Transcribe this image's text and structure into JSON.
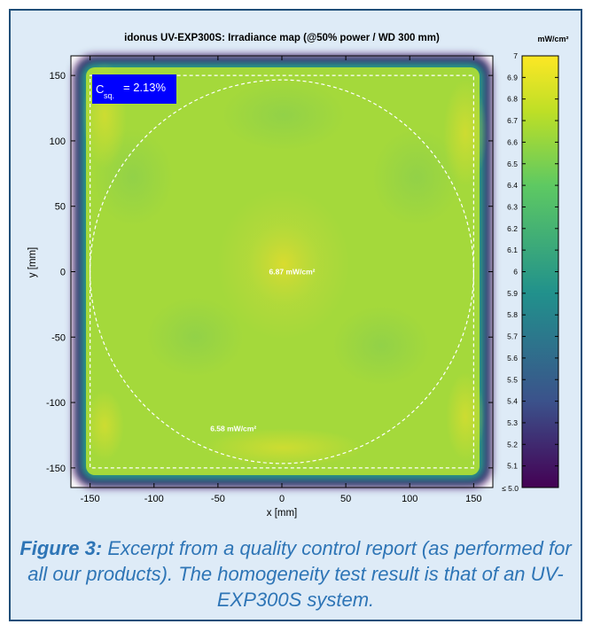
{
  "chart_data": {
    "type": "heatmap",
    "title": "idonus UV-EXP300S: Irradiance map (@50% power / WD 300 mm)",
    "xlabel": "x [mm]",
    "ylabel": "y [mm]",
    "xlim": [
      -165,
      165
    ],
    "ylim": [
      -165,
      165
    ],
    "xticks": [
      -150,
      -100,
      -50,
      0,
      50,
      100,
      150
    ],
    "xtick_labels": [
      "-150",
      "-100",
      "-50",
      "0",
      "50",
      "100",
      "150"
    ],
    "yticks": [
      150,
      100,
      50,
      0,
      -50,
      -100,
      -150
    ],
    "ytick_labels": [
      "150",
      "100",
      "50",
      "0",
      "-50",
      "-100",
      "-150"
    ],
    "exposure_square_mm": [
      -150,
      150
    ],
    "circle_radius_mm": 150,
    "grid": false,
    "colorbar": {
      "unit": "mW/cm²",
      "min": 5.0,
      "max": 7.0,
      "ticks": [
        7,
        6.9,
        6.8,
        6.7,
        6.6,
        6.5,
        6.4,
        6.3,
        6.2,
        6.1,
        6,
        5.9,
        5.8,
        5.7,
        5.6,
        5.5,
        5.4,
        5.3,
        5.2,
        5.1
      ],
      "tick_labels": [
        "7",
        "6.9",
        "6.8",
        "6.7",
        "6.6",
        "6.5",
        "6.4",
        "6.3",
        "6.2",
        "6.1",
        "6",
        "5.9",
        "5.8",
        "5.7",
        "5.6",
        "5.5",
        "5.4",
        "5.3",
        "5.2",
        "5.1"
      ],
      "bottom_label": "≤ 5.0",
      "colors": [
        "#440154",
        "#3b528b",
        "#21918c",
        "#5ec962",
        "#bddf26",
        "#fde725"
      ]
    },
    "annotations": {
      "csq_main": "C",
      "csq_sub": "sq.",
      "csq_value": "= 2.13%",
      "center_value": "6.87 mW/cm²",
      "center_pos_mm": [
        8,
        0
      ],
      "lower_value": "6.58 mW/cm²",
      "lower_pos_mm": [
        -38,
        -120
      ]
    }
  },
  "caption": {
    "label": "Figure 3:",
    "text": "Excerpt from a quality control report (as performed for all our products). The homogeneity test result is that of an UV-EXP300S system."
  },
  "colors": {
    "frame_border": "#1f4e79",
    "frame_fill": "#deebf7",
    "caption_text": "#2e75b6",
    "csq_box": "#0000ff"
  }
}
